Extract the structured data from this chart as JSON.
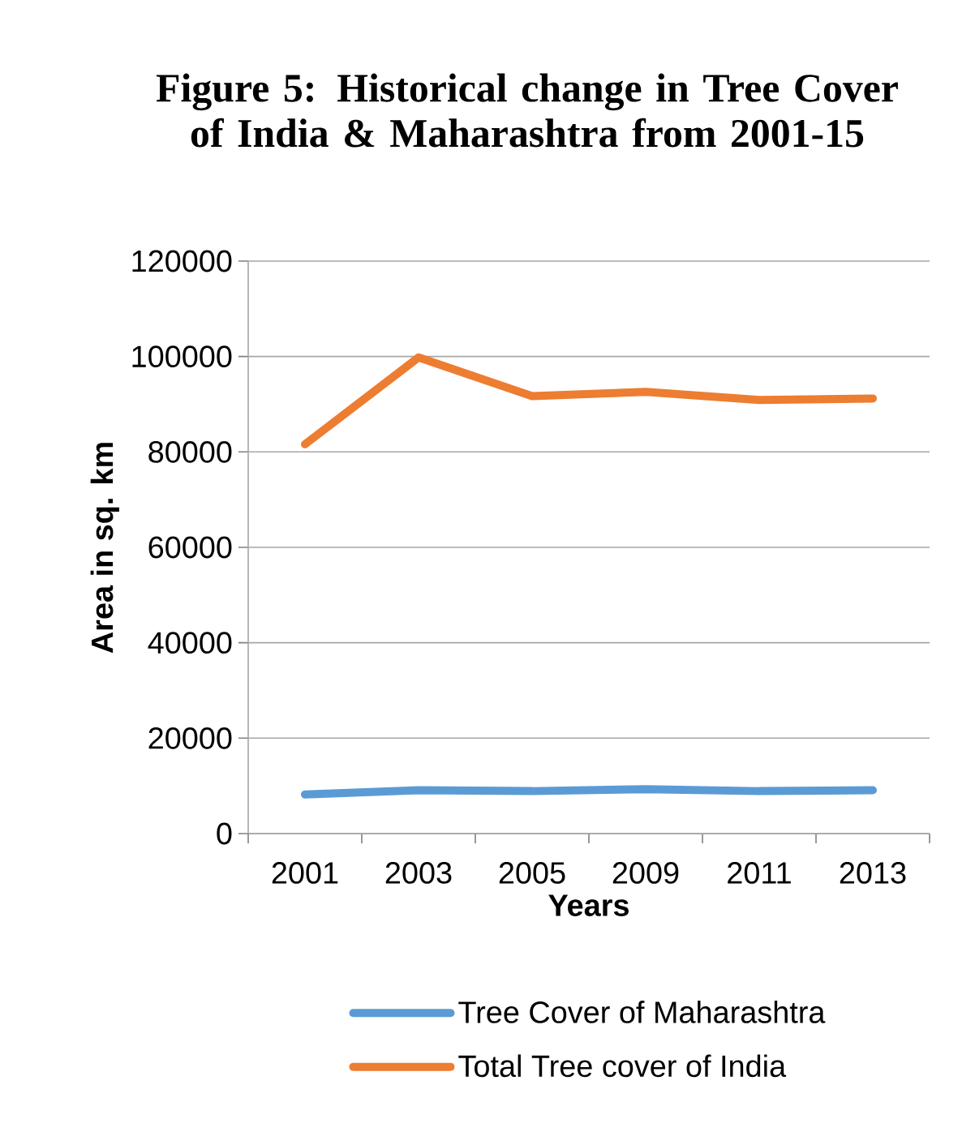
{
  "chart_data": {
    "type": "line",
    "title": "Figure 5: Historical change in Tree Cover of India & Maharashtra from 2001-15",
    "xlabel": "Years",
    "ylabel": "Area in sq. km",
    "categories": [
      "2001",
      "2003",
      "2005",
      "2009",
      "2011",
      "2013"
    ],
    "series": [
      {
        "name": "Tree Cover of Maharashtra",
        "color": "#5b9bd5",
        "values": [
          8200,
          9100,
          8900,
          9300,
          8900,
          9100
        ]
      },
      {
        "name": "Total Tree cover of India",
        "color": "#ed7d31",
        "values": [
          81600,
          99800,
          91700,
          92600,
          90900,
          91200
        ]
      }
    ],
    "ylim": [
      0,
      120000
    ],
    "yticks": [
      0,
      20000,
      40000,
      60000,
      80000,
      100000,
      120000
    ],
    "grid": "y",
    "legend": "bottom",
    "marker": "none",
    "line_style": "solid"
  }
}
